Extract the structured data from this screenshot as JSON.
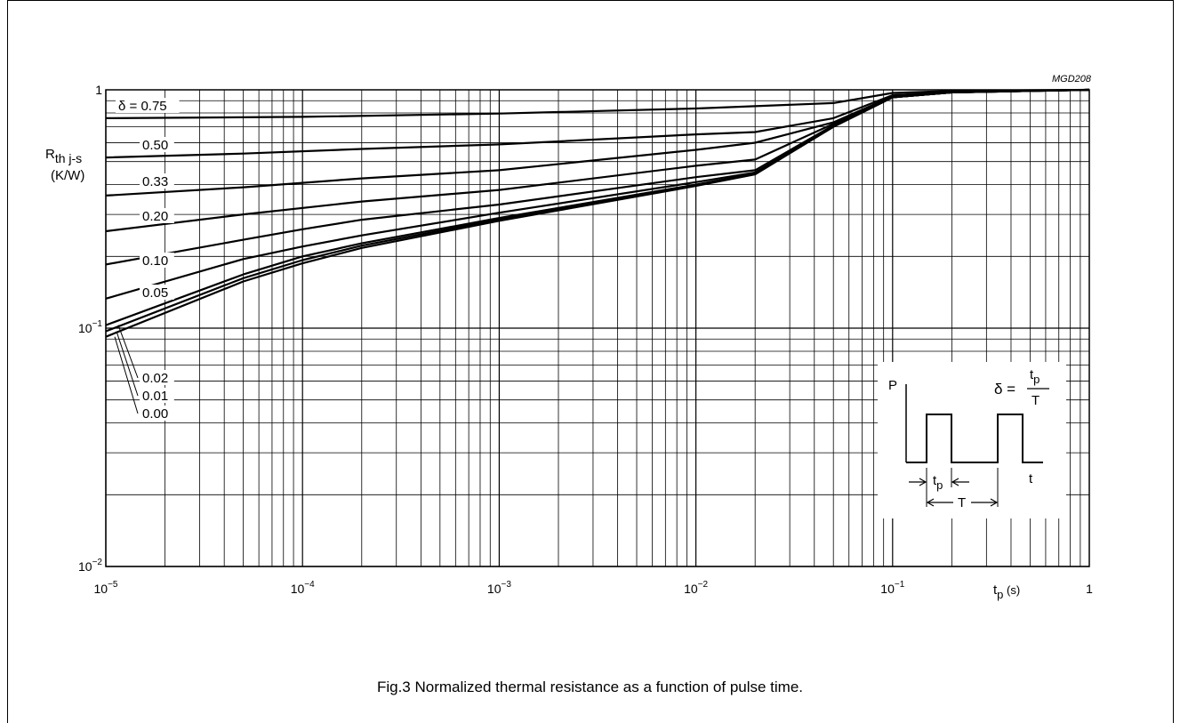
{
  "figure_id": "MGD208",
  "caption": "Fig.3  Normalized thermal resistance as a function of pulse time.",
  "chart_data": {
    "type": "line",
    "x_scale": "log",
    "y_scale": "log",
    "xlim": [
      1e-05,
      1
    ],
    "ylim": [
      0.01,
      1
    ],
    "grid": true,
    "ylabel": {
      "main": "R",
      "sub": "th j-s",
      "unit": "(K/W)"
    },
    "xlabel": {
      "main": "t",
      "sub": "p",
      "unit": "(s)"
    },
    "x_ticks": [
      {
        "value": 1e-05,
        "base": "10",
        "exp": "−5"
      },
      {
        "value": 0.0001,
        "base": "10",
        "exp": "−4"
      },
      {
        "value": 0.001,
        "base": "10",
        "exp": "−3"
      },
      {
        "value": 0.01,
        "base": "10",
        "exp": "−2"
      },
      {
        "value": 0.1,
        "base": "10",
        "exp": "−1"
      },
      {
        "value": 1,
        "base": "1",
        "exp": ""
      }
    ],
    "y_ticks": [
      {
        "value": 0.01,
        "base": "10",
        "exp": "−2"
      },
      {
        "value": 0.1,
        "base": "10",
        "exp": "−1"
      },
      {
        "value": 1,
        "base": "1",
        "exp": ""
      }
    ],
    "series": [
      {
        "name": "δ = 0.75",
        "x": [
          1e-05,
          0.0001,
          0.001,
          0.01,
          0.05,
          0.1,
          0.2,
          1
        ],
        "y": [
          0.76,
          0.77,
          0.795,
          0.835,
          0.88,
          0.97,
          0.99,
          1.0
        ]
      },
      {
        "name": "0.50",
        "x": [
          1e-05,
          5e-05,
          0.0002,
          0.001,
          0.01,
          0.02,
          0.05,
          0.1,
          0.2,
          1
        ],
        "y": [
          0.52,
          0.54,
          0.565,
          0.59,
          0.65,
          0.665,
          0.76,
          0.95,
          0.98,
          1.0
        ]
      },
      {
        "name": "0.33",
        "x": [
          1e-05,
          5e-05,
          0.0002,
          0.001,
          0.01,
          0.02,
          0.05,
          0.1,
          0.2,
          1
        ],
        "y": [
          0.36,
          0.39,
          0.425,
          0.46,
          0.56,
          0.6,
          0.73,
          0.94,
          0.98,
          1.0
        ]
      },
      {
        "name": "0.20",
        "x": [
          1e-05,
          5e-05,
          0.0002,
          0.001,
          0.01,
          0.02,
          0.05,
          0.1,
          0.2,
          1
        ],
        "y": [
          0.255,
          0.3,
          0.34,
          0.38,
          0.48,
          0.51,
          0.72,
          0.93,
          0.975,
          1.0
        ]
      },
      {
        "name": "0.10",
        "x": [
          1e-05,
          5e-05,
          0.0001,
          0.0002,
          0.001,
          0.01,
          0.02,
          0.05,
          0.1,
          0.2,
          1
        ],
        "y": [
          0.185,
          0.235,
          0.26,
          0.285,
          0.33,
          0.43,
          0.46,
          0.71,
          0.93,
          0.975,
          1.0
        ]
      },
      {
        "name": "0.05",
        "x": [
          1e-05,
          5e-05,
          0.0001,
          0.0002,
          0.001,
          0.01,
          0.02,
          0.05,
          0.1,
          0.2,
          1
        ],
        "y": [
          0.133,
          0.195,
          0.22,
          0.245,
          0.305,
          0.41,
          0.45,
          0.7,
          0.93,
          0.975,
          1.0
        ]
      },
      {
        "name": "0.02",
        "x": [
          1e-05,
          5e-05,
          0.0001,
          0.0002,
          0.001,
          0.01,
          0.02,
          0.05,
          0.1,
          0.2,
          1
        ],
        "y": [
          0.103,
          0.168,
          0.2,
          0.227,
          0.29,
          0.4,
          0.445,
          0.7,
          0.93,
          0.975,
          1.0
        ]
      },
      {
        "name": "0.01",
        "x": [
          1e-05,
          5e-05,
          0.0001,
          0.0002,
          0.001,
          0.01,
          0.02,
          0.05,
          0.1,
          0.2,
          1
        ],
        "y": [
          0.097,
          0.162,
          0.193,
          0.222,
          0.286,
          0.397,
          0.443,
          0.7,
          0.93,
          0.975,
          1.0
        ]
      },
      {
        "name": "0.00",
        "x": [
          1e-05,
          5e-05,
          0.0001,
          0.0002,
          0.001,
          0.01,
          0.02,
          0.05,
          0.1,
          0.2,
          1
        ],
        "y": [
          0.092,
          0.157,
          0.187,
          0.217,
          0.282,
          0.395,
          0.442,
          0.7,
          0.93,
          0.975,
          1.0
        ]
      }
    ],
    "annotations": [
      {
        "text": "δ = 0.75",
        "series": 0
      },
      {
        "text": "0.50",
        "series": 1
      },
      {
        "text": "0.33",
        "series": 2
      },
      {
        "text": "0.20",
        "series": 3
      },
      {
        "text": "0.10",
        "series": 4
      },
      {
        "text": "0.05",
        "series": 5
      },
      {
        "text": "0.02",
        "series": 6
      },
      {
        "text": "0.01",
        "series": 7
      },
      {
        "text": "0.00",
        "series": 8
      }
    ],
    "inset": {
      "p_label": "P",
      "t_label": "t",
      "tp_main": "t",
      "tp_sub": "p",
      "T_label": "T",
      "delta_lhs": "δ =",
      "delta_num_main": "t",
      "delta_num_sub": "p",
      "delta_den": "T"
    }
  }
}
